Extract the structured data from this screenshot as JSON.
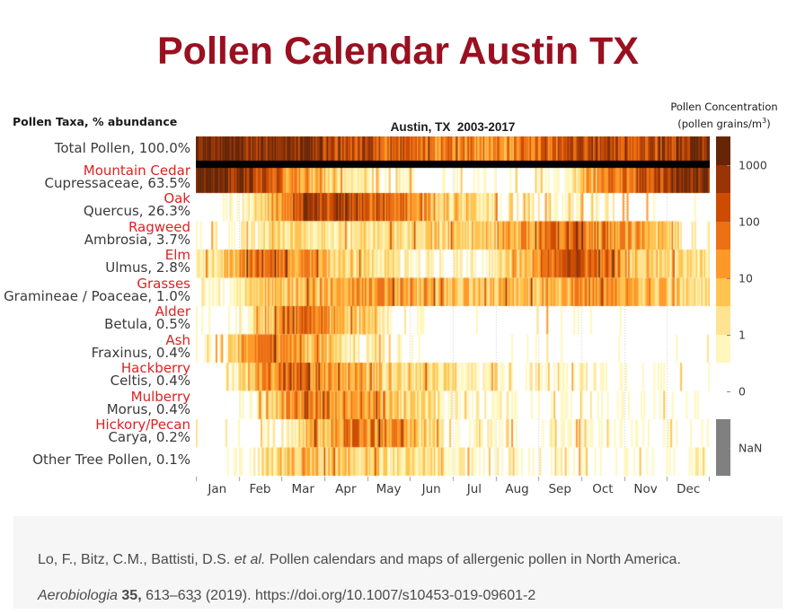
{
  "header": {
    "title": "Pollen Calendar Austin TX",
    "title_color": "#9a1020"
  },
  "chart_data": {
    "type": "heatmap",
    "title": "Austin, TX  2003-2017",
    "ylabel_header": "Pollen Taxa, % abundance",
    "xlabel": "",
    "value_unit": "pollen grains/m³ (approximate monthly mean concentration, log scale)",
    "months": [
      "Jan",
      "Feb",
      "Mar",
      "Apr",
      "May",
      "Jun",
      "Jul",
      "Aug",
      "Sep",
      "Oct",
      "Nov",
      "Dec"
    ],
    "grid": "dotted vertical month boundaries",
    "separator_after_row": 0,
    "rows": [
      {
        "common": "",
        "taxon": "Total Pollen, 100.0%",
        "monthly": [
          1500,
          500,
          800,
          200,
          120,
          40,
          25,
          30,
          100,
          400,
          150,
          700
        ]
      },
      {
        "common": "Mountain Cedar",
        "taxon": "Cupressaceae, 63.5%",
        "monthly": [
          1800,
          250,
          10,
          1.5,
          0.6,
          0.05,
          0.2,
          0.05,
          0.3,
          20,
          150,
          800
        ]
      },
      {
        "common": "Oak",
        "taxon": "Quercus, 26.3%",
        "monthly": [
          0.05,
          4,
          300,
          500,
          60,
          8,
          1.2,
          0.8,
          0.6,
          0.1,
          0.3,
          0.05
        ]
      },
      {
        "common": "Ragweed",
        "taxon": "Ambrosia, 3.7%",
        "monthly": [
          0.2,
          1,
          2.5,
          1.5,
          1.5,
          2.5,
          3.5,
          8,
          90,
          30,
          8,
          0.5
        ]
      },
      {
        "common": "Elm",
        "taxon": "Ulmus, 2.8%",
        "monthly": [
          1.5,
          90,
          25,
          2.5,
          1.5,
          0.3,
          0.3,
          4,
          120,
          50,
          5,
          1.5
        ]
      },
      {
        "common": "Grasses",
        "taxon": "Gramineae / Poaceae, 1.0%",
        "monthly": [
          0.4,
          4,
          7,
          15,
          18,
          7,
          5,
          5,
          9,
          18,
          7,
          2.5
        ]
      },
      {
        "common": "Alder",
        "taxon": "Betula, 0.5%",
        "monthly": [
          0.1,
          2.5,
          90,
          6,
          0.6,
          0.05,
          0.02,
          0.05,
          0.2,
          0.05,
          0.02,
          0.02
        ]
      },
      {
        "common": "Ash",
        "taxon": "Fraxinus, 0.4%",
        "monthly": [
          0.3,
          90,
          12,
          1.2,
          0.6,
          0.05,
          0.02,
          0.02,
          0.1,
          0.05,
          0.02,
          0.05
        ]
      },
      {
        "common": "Hackberry",
        "taxon": "Celtis, 0.4%",
        "monthly": [
          0.05,
          25,
          50,
          12,
          2.5,
          1.5,
          0.8,
          0.8,
          0.4,
          0.2,
          0.2,
          0.15
        ]
      },
      {
        "common": "Mulberry",
        "taxon": "Morus, 0.4%",
        "monthly": [
          0.02,
          1.5,
          70,
          18,
          5,
          1.5,
          0.4,
          0.3,
          0.15,
          0.2,
          0.15,
          0.1
        ]
      },
      {
        "common": "Hickory/Pecan",
        "taxon": "Carya, 0.2%",
        "monthly": [
          0.02,
          0.15,
          2.5,
          45,
          18,
          1.5,
          0.3,
          0.25,
          0.3,
          0.25,
          0.1,
          0.1
        ]
      },
      {
        "common": "",
        "taxon": "Other Tree Pollen, 0.1%",
        "monthly": [
          0.05,
          0.8,
          7,
          4,
          1.5,
          1.2,
          0.3,
          0.25,
          0.25,
          0.15,
          0.15,
          0.25
        ]
      }
    ],
    "colorbar": {
      "title": "Pollen Concentration",
      "unit_pre": "(pollen grains/m",
      "unit_sup": "3",
      "unit_post": ")",
      "ticks": [
        "1000",
        "100",
        "10",
        "1",
        "0",
        "NaN"
      ],
      "scale_colors_light_to_dark": [
        "#fff7bc",
        "#fee391",
        "#fec44f",
        "#fe9929",
        "#ec7014",
        "#cc4c02",
        "#993404",
        "#662506"
      ],
      "zero_color": "#ffffff",
      "nan_color": "#808080",
      "legend_position": "right"
    },
    "taxa_label_colors": {
      "common_name": "#dd2222",
      "scientific_name": "#3a3a3a"
    }
  },
  "citation": {
    "segments": [
      {
        "text": "Lo, F., Bitz, C.M., Battisti, D.S. ",
        "style": "normal"
      },
      {
        "text": "et al.",
        "style": "italic"
      },
      {
        "text": " Pollen calendars and maps of allergenic pollen in North America. ",
        "style": "normal"
      },
      {
        "text": "Aerobiologia",
        "style": "italic"
      },
      {
        "text": " ",
        "style": "normal"
      },
      {
        "text": "35,",
        "style": "bold"
      },
      {
        "text": " 613–633 (2019). ",
        "style": "normal"
      },
      {
        "text": "https://doi.org/10.1007/s10453-019-09601-2",
        "style": "link"
      }
    ]
  }
}
